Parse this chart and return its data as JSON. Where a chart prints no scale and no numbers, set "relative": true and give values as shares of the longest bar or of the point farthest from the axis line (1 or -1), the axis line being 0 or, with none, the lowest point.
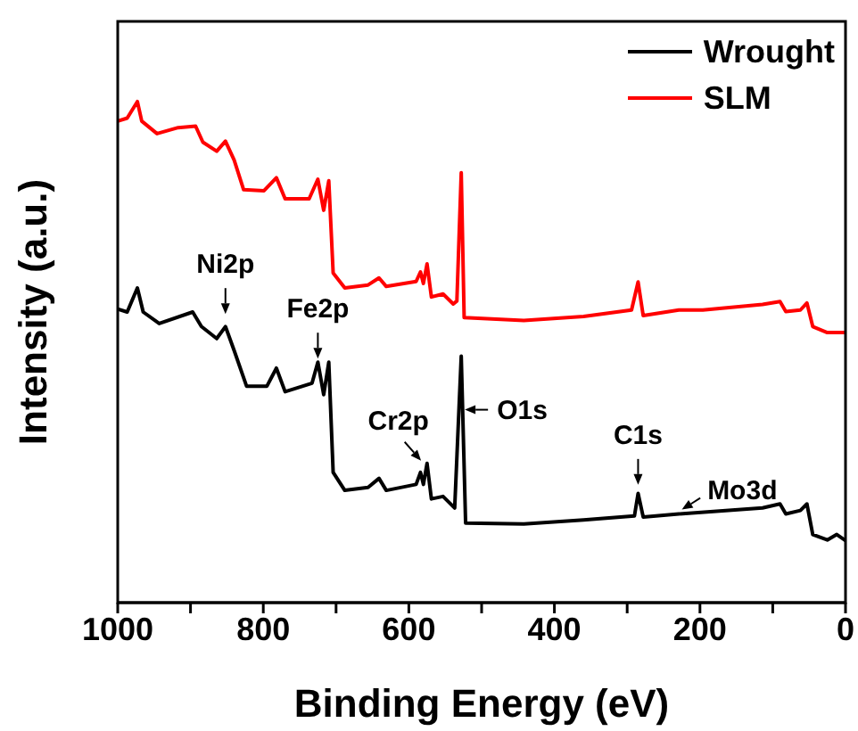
{
  "chart_data": {
    "type": "line",
    "relative": true,
    "xlabel": "Binding Energy (eV)",
    "ylabel": "Intensity (a.u.)",
    "xlim": [
      1000,
      0
    ],
    "xticks": [
      1000,
      {
        "value": 900,
        "label": null
      },
      800,
      {
        "value": 700,
        "label": null
      },
      600,
      {
        "value": 500,
        "label": null
      },
      400,
      {
        "value": 300,
        "label": null
      },
      200,
      {
        "value": 100,
        "label": null
      },
      0
    ],
    "tick_labels": "x",
    "legend": "top right",
    "marker": "none",
    "line_style": "solid",
    "series": [
      {
        "name": "Wrought",
        "color": "#000000",
        "x": [
          1000,
          987,
          973,
          965,
          943,
          897,
          885,
          864,
          852,
          840,
          823,
          795,
          782,
          770,
          733,
          725,
          717,
          710,
          704,
          688,
          656,
          641,
          631,
          590,
          584,
          580,
          575,
          569,
          553,
          537,
          528,
          522,
          442,
          360,
          290,
          285,
          278,
          229,
          114,
          90,
          82,
          62,
          53,
          45,
          25,
          12,
          0
        ],
        "values": [
          0.586,
          0.58,
          0.628,
          0.58,
          0.557,
          0.58,
          0.551,
          0.527,
          0.551,
          0.503,
          0.432,
          0.432,
          0.468,
          0.421,
          0.438,
          0.48,
          0.415,
          0.48,
          0.26,
          0.224,
          0.23,
          0.248,
          0.224,
          0.236,
          0.26,
          0.236,
          0.278,
          0.207,
          0.212,
          0.189,
          0.492,
          0.159,
          0.157,
          0.165,
          0.173,
          0.218,
          0.171,
          0.177,
          0.189,
          0.197,
          0.177,
          0.184,
          0.197,
          0.136,
          0.125,
          0.136,
          0.124
        ]
      },
      {
        "name": "SLM",
        "color": "#ff0000",
        "x": [
          1000,
          987,
          973,
          967,
          946,
          917,
          893,
          883,
          864,
          852,
          840,
          827,
          799,
          782,
          770,
          737,
          725,
          717,
          710,
          704,
          688,
          656,
          641,
          631,
          590,
          584,
          580,
          575,
          569,
          553,
          539,
          534,
          528,
          524,
          442,
          360,
          294,
          285,
          278,
          229,
          196,
          114,
          90,
          82,
          62,
          53,
          45,
          25,
          0
        ],
        "values": [
          0.961,
          0.967,
          1.0,
          0.961,
          0.936,
          0.948,
          0.951,
          0.919,
          0.901,
          0.921,
          0.883,
          0.824,
          0.822,
          0.848,
          0.806,
          0.806,
          0.845,
          0.783,
          0.842,
          0.658,
          0.628,
          0.634,
          0.648,
          0.631,
          0.641,
          0.66,
          0.637,
          0.676,
          0.61,
          0.616,
          0.596,
          0.602,
          0.858,
          0.569,
          0.563,
          0.571,
          0.584,
          0.64,
          0.573,
          0.584,
          0.584,
          0.595,
          0.601,
          0.581,
          0.584,
          0.598,
          0.551,
          0.539,
          0.539
        ]
      }
    ],
    "annotations": [
      {
        "text": "Ni2p",
        "x": 852,
        "y": 0.569
      },
      {
        "text": "Fe2p",
        "x": 725,
        "y": 0.48
      },
      {
        "text": "Cr2p",
        "x": 580,
        "y": 0.278
      },
      {
        "text": "O1s",
        "x": 528,
        "y": 0.385
      },
      {
        "text": "C1s",
        "x": 285,
        "y": 0.228
      },
      {
        "text": "Mo3d",
        "x": 229,
        "y": 0.182
      }
    ]
  }
}
